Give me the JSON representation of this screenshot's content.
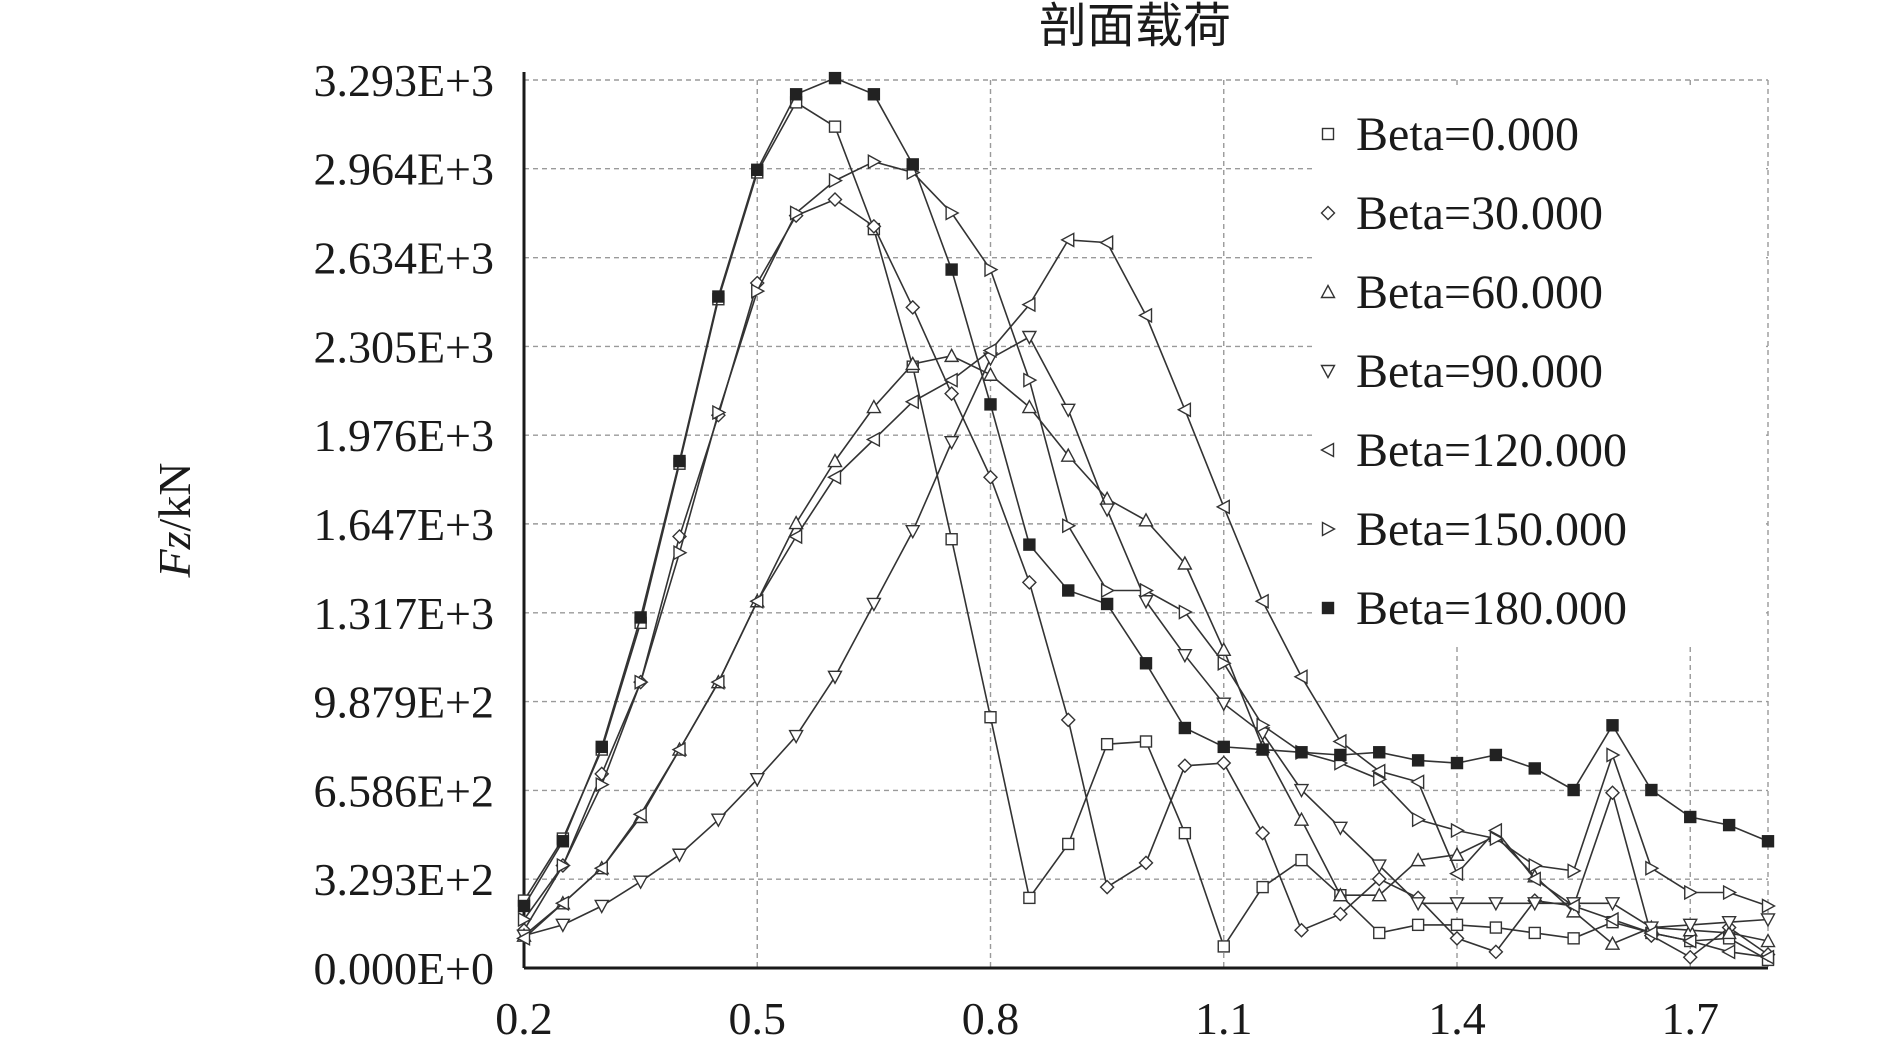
{
  "chart_data": {
    "type": "line",
    "title": "剖面载荷",
    "xlabel": "",
    "ylabel": "Fz/kN",
    "ylabel_italic_part": "Fz",
    "ylabel_rest": "/kN",
    "xlim": [
      0.2,
      1.8
    ],
    "ylim": [
      0,
      3293
    ],
    "x_ticks": [
      0.2,
      0.5,
      0.8,
      1.1,
      1.4,
      1.7
    ],
    "x_tick_labels": [
      "0.2",
      "0.5",
      "0.8",
      "1.1",
      "1.4",
      "1.7"
    ],
    "y_ticks": [
      0,
      329.3,
      658.6,
      987.9,
      1317,
      1647,
      1976,
      2305,
      2634,
      2964,
      3293
    ],
    "y_tick_labels": [
      "0.000E+0",
      "3.293E+2",
      "6.586E+2",
      "9.879E+2",
      "1.317E+3",
      "1.647E+3",
      "1.976E+3",
      "2.305E+3",
      "2.634E+3",
      "2.964E+3",
      "3.293E+3"
    ],
    "grid": true,
    "legend_position": "top-right",
    "series": [
      {
        "name": "Beta=0.000",
        "marker": "square-open",
        "x": [
          0.2,
          0.25,
          0.3,
          0.35,
          0.4,
          0.45,
          0.5,
          0.55,
          0.6,
          0.65,
          0.7,
          0.75,
          0.8,
          0.85,
          0.9,
          0.95,
          1.0,
          1.05,
          1.1,
          1.15,
          1.2,
          1.25,
          1.3,
          1.35,
          1.4,
          1.45,
          1.5,
          1.55,
          1.6,
          1.65,
          1.7,
          1.75,
          1.8
        ],
        "values": [
          250,
          480,
          810,
          1280,
          1870,
          2480,
          2950,
          3210,
          3120,
          2740,
          2230,
          1590,
          930,
          260,
          460,
          830,
          840,
          500,
          80,
          300,
          400,
          270,
          130,
          160,
          160,
          150,
          130,
          110,
          170,
          130,
          100,
          110,
          30
        ]
      },
      {
        "name": "Beta=30.000",
        "marker": "diamond-open",
        "x": [
          0.2,
          0.25,
          0.3,
          0.35,
          0.4,
          0.45,
          0.5,
          0.55,
          0.6,
          0.65,
          0.7,
          0.75,
          0.8,
          0.85,
          0.9,
          0.95,
          1.0,
          1.05,
          1.1,
          1.15,
          1.2,
          1.25,
          1.3,
          1.35,
          1.4,
          1.45,
          1.5,
          1.55,
          1.6,
          1.65,
          1.7,
          1.75,
          1.8
        ],
        "values": [
          140,
          380,
          720,
          1060,
          1600,
          2050,
          2540,
          2790,
          2850,
          2750,
          2450,
          2130,
          1820,
          1430,
          920,
          300,
          390,
          750,
          760,
          500,
          140,
          200,
          330,
          260,
          110,
          60,
          250,
          230,
          650,
          120,
          40,
          150,
          50
        ]
      },
      {
        "name": "Beta=60.000",
        "marker": "triangle-up-open",
        "x": [
          0.2,
          0.25,
          0.3,
          0.35,
          0.4,
          0.45,
          0.5,
          0.55,
          0.6,
          0.65,
          0.7,
          0.75,
          0.8,
          0.85,
          0.9,
          0.95,
          1.0,
          1.05,
          1.1,
          1.15,
          1.2,
          1.25,
          1.3,
          1.35,
          1.4,
          1.45,
          1.5,
          1.55,
          1.6,
          1.65,
          1.7,
          1.75,
          1.8
        ],
        "values": [
          120,
          240,
          370,
          560,
          810,
          1060,
          1360,
          1650,
          1880,
          2080,
          2240,
          2270,
          2200,
          2080,
          1900,
          1740,
          1660,
          1500,
          1180,
          820,
          550,
          270,
          270,
          400,
          420,
          490,
          340,
          210,
          90,
          150,
          140,
          130,
          100
        ]
      },
      {
        "name": "Beta=90.000",
        "marker": "triangle-down-open",
        "x": [
          0.2,
          0.25,
          0.3,
          0.35,
          0.4,
          0.45,
          0.5,
          0.55,
          0.6,
          0.65,
          0.7,
          0.75,
          0.8,
          0.85,
          0.9,
          0.95,
          1.0,
          1.05,
          1.1,
          1.15,
          1.2,
          1.25,
          1.3,
          1.35,
          1.4,
          1.45,
          1.5,
          1.55,
          1.6,
          1.65,
          1.7,
          1.75,
          1.8
        ],
        "values": [
          120,
          160,
          230,
          320,
          420,
          550,
          700,
          860,
          1080,
          1350,
          1620,
          1950,
          2260,
          2340,
          2070,
          1700,
          1360,
          1160,
          980,
          870,
          660,
          520,
          380,
          240,
          240,
          240,
          240,
          240,
          240,
          150,
          160,
          170,
          180
        ]
      },
      {
        "name": "Beta=120.000",
        "marker": "triangle-left-open",
        "x": [
          0.2,
          0.25,
          0.3,
          0.35,
          0.4,
          0.45,
          0.5,
          0.55,
          0.6,
          0.65,
          0.7,
          0.75,
          0.8,
          0.85,
          0.9,
          0.95,
          1.0,
          1.05,
          1.1,
          1.15,
          1.2,
          1.25,
          1.3,
          1.35,
          1.4,
          1.45,
          1.5,
          1.55,
          1.6,
          1.65,
          1.7,
          1.75,
          1.8
        ],
        "values": [
          110,
          240,
          370,
          570,
          810,
          1060,
          1360,
          1600,
          1820,
          1960,
          2100,
          2180,
          2290,
          2460,
          2700,
          2690,
          2420,
          2070,
          1710,
          1360,
          1080,
          840,
          730,
          690,
          350,
          510,
          330,
          230,
          180,
          130,
          100,
          60,
          40
        ]
      },
      {
        "name": "Beta=150.000",
        "marker": "triangle-right-open",
        "x": [
          0.2,
          0.25,
          0.3,
          0.35,
          0.4,
          0.45,
          0.5,
          0.55,
          0.6,
          0.65,
          0.7,
          0.75,
          0.8,
          0.85,
          0.9,
          0.95,
          1.0,
          1.05,
          1.1,
          1.15,
          1.2,
          1.25,
          1.3,
          1.35,
          1.4,
          1.45,
          1.5,
          1.55,
          1.6,
          1.65,
          1.7,
          1.75,
          1.8
        ],
        "values": [
          180,
          380,
          680,
          1060,
          1540,
          2060,
          2510,
          2800,
          2920,
          2990,
          2950,
          2800,
          2590,
          2180,
          1640,
          1400,
          1400,
          1320,
          1130,
          900,
          800,
          760,
          700,
          550,
          510,
          480,
          380,
          360,
          790,
          370,
          280,
          280,
          230
        ]
      },
      {
        "name": "Beta=180.000",
        "marker": "square-filled",
        "x": [
          0.2,
          0.25,
          0.3,
          0.35,
          0.4,
          0.45,
          0.5,
          0.55,
          0.6,
          0.65,
          0.7,
          0.75,
          0.8,
          0.85,
          0.9,
          0.95,
          1.0,
          1.05,
          1.1,
          1.15,
          1.2,
          1.25,
          1.3,
          1.35,
          1.4,
          1.45,
          1.5,
          1.55,
          1.6,
          1.65,
          1.7,
          1.75,
          1.8
        ],
        "values": [
          230,
          470,
          820,
          1300,
          1880,
          2490,
          2960,
          3240,
          3300,
          3240,
          2980,
          2590,
          2090,
          1570,
          1400,
          1350,
          1130,
          890,
          820,
          810,
          800,
          790,
          800,
          770,
          760,
          790,
          740,
          660,
          900,
          660,
          560,
          530,
          470
        ]
      }
    ]
  }
}
